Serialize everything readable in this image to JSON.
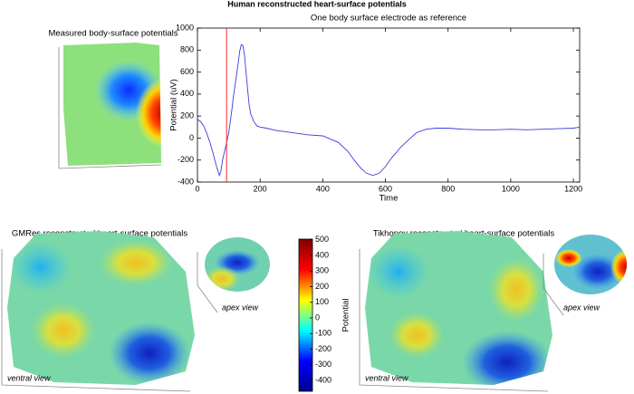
{
  "title": "Human reconstructed heart-surface potentials",
  "panels": [
    {
      "title": "Measured body-surface potentials"
    },
    {
      "title": "GMRes reconstructed heart-surface potentials",
      "views": [
        "ventral view",
        "apex view"
      ]
    },
    {
      "title": "Tikhonov reconstructed heart-surface potentials",
      "views": [
        "ventral view",
        "apex view"
      ]
    }
  ],
  "chart_data": [
    {
      "type": "line",
      "title": "One body surface electrode as reference",
      "xlabel": "Time",
      "ylabel": "Potential (uV)",
      "x": [
        0,
        10,
        20,
        30,
        40,
        50,
        60,
        70,
        75,
        80,
        90,
        100,
        105,
        110,
        115,
        120,
        125,
        130,
        135,
        140,
        145,
        150,
        155,
        160,
        165,
        170,
        180,
        190,
        200,
        220,
        250,
        300,
        350,
        400,
        450,
        480,
        500,
        520,
        540,
        560,
        580,
        600,
        620,
        650,
        680,
        700,
        730,
        760,
        800,
        850,
        900,
        950,
        1000,
        1050,
        1100,
        1150,
        1200,
        1220
      ],
      "series": [
        {
          "name": "electrode",
          "color": "#3c3cdc",
          "values": [
            170,
            150,
            110,
            40,
            -40,
            -140,
            -250,
            -340,
            -300,
            -200,
            -80,
            50,
            150,
            260,
            380,
            480,
            580,
            680,
            790,
            850,
            840,
            760,
            600,
            450,
            300,
            220,
            150,
            110,
            100,
            90,
            70,
            50,
            30,
            20,
            -40,
            -120,
            -200,
            -270,
            -320,
            -340,
            -320,
            -260,
            -180,
            -80,
            0,
            50,
            80,
            90,
            90,
            80,
            75,
            75,
            80,
            75,
            80,
            85,
            90,
            100
          ]
        }
      ],
      "vline": {
        "x": 93,
        "color": "#ff2a2a"
      },
      "xlim": [
        0,
        1220
      ],
      "ylim": [
        -400,
        1000
      ],
      "xticks": [
        0,
        200,
        400,
        600,
        800,
        1000,
        1200
      ],
      "yticks": [
        -400,
        -200,
        0,
        200,
        400,
        600,
        800,
        1000
      ]
    },
    {
      "type": "colorbar",
      "ylabel": "Potential",
      "ylim": [
        -470,
        505
      ],
      "yticks": [
        -400,
        -300,
        -200,
        -100,
        0,
        100,
        200,
        300,
        400,
        500
      ],
      "colors": [
        "#00008f",
        "#0000ff",
        "#00ffff",
        "#ffff00",
        "#ff0000",
        "#800000"
      ]
    }
  ]
}
